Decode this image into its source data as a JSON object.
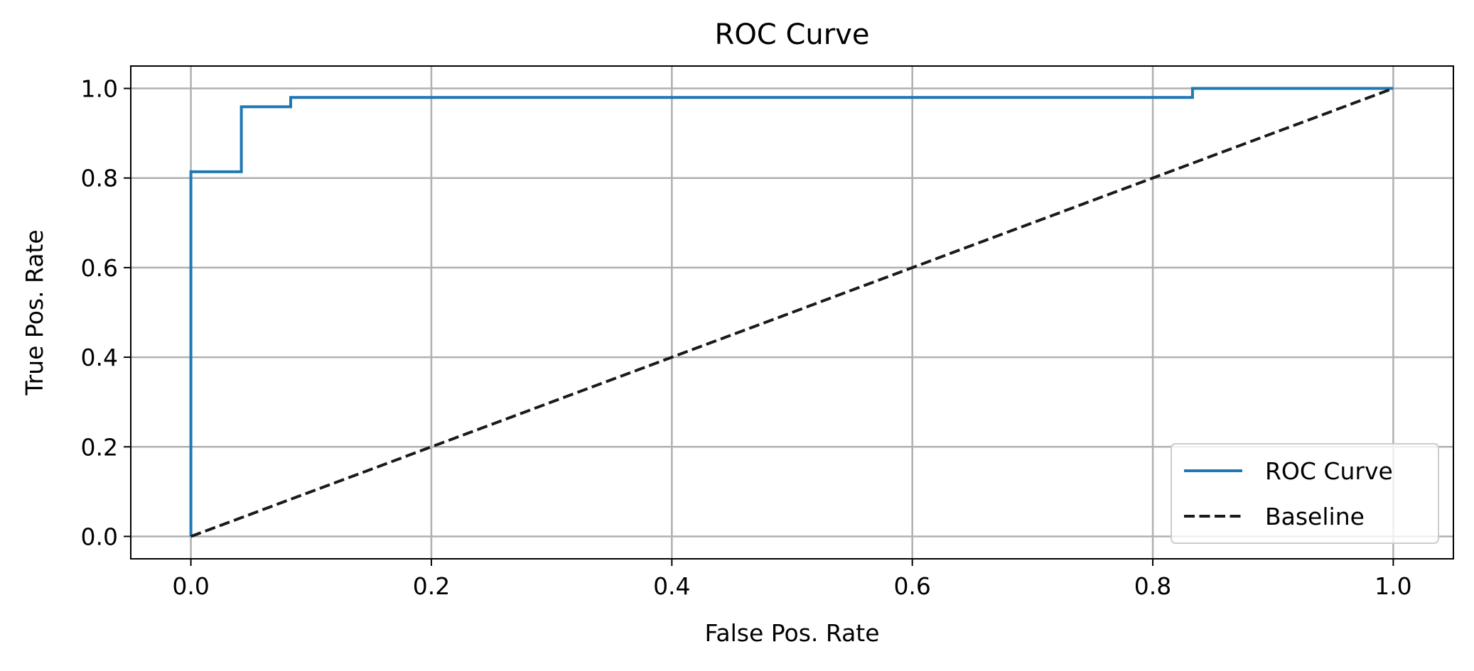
{
  "chart_data": {
    "type": "line",
    "title": "ROC Curve",
    "xlabel": "False Pos. Rate",
    "ylabel": "True Pos. Rate",
    "xlim": [
      -0.05,
      1.05
    ],
    "ylim": [
      -0.05,
      1.05
    ],
    "xticks": [
      0.0,
      0.2,
      0.4,
      0.6,
      0.8,
      1.0
    ],
    "xtick_labels": [
      "0.0",
      "0.2",
      "0.4",
      "0.6",
      "0.8",
      "1.0"
    ],
    "yticks": [
      0.0,
      0.2,
      0.4,
      0.6,
      0.8,
      1.0
    ],
    "ytick_labels": [
      "0.0",
      "0.2",
      "0.4",
      "0.6",
      "0.8",
      "1.0"
    ],
    "grid": true,
    "legend": {
      "position": "lower-right",
      "entries": [
        "ROC Curve",
        "Baseline"
      ]
    },
    "series": [
      {
        "name": "ROC Curve",
        "color": "#1f77b4",
        "style": "solid",
        "x": [
          0.0,
          0.0,
          0.042,
          0.042,
          0.083,
          0.083,
          0.833,
          0.833,
          1.0
        ],
        "y": [
          0.0,
          0.814,
          0.814,
          0.959,
          0.959,
          0.98,
          0.98,
          1.0,
          1.0
        ]
      },
      {
        "name": "Baseline",
        "color": "#1a1a1a",
        "style": "dashed",
        "x": [
          0.0,
          1.0
        ],
        "y": [
          0.0,
          1.0
        ]
      }
    ]
  }
}
